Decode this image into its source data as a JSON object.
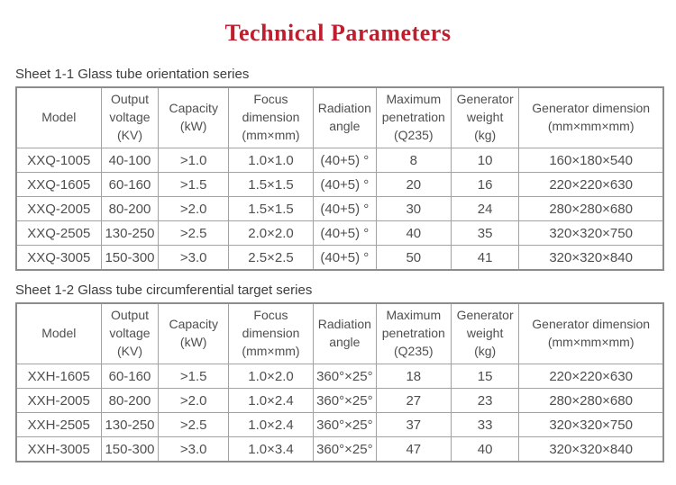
{
  "page": {
    "title": "Technical Parameters",
    "accent_color": "#be1e2d",
    "text_color": "#4f4f4f"
  },
  "tables": [
    {
      "caption": "Sheet 1-1 Glass tube orientation series",
      "headers": [
        "Model",
        "Output\nvoltage\n(KV)",
        "Capacity\n(kW)",
        "Focus\ndimension\n(mm×mm)",
        "Radiation\nangle",
        "Maximum\npenetration\n(Q235)",
        "Generator\nweight\n(kg)",
        "Generator dimension\n(mm×mm×mm)"
      ],
      "rows": [
        [
          "XXQ-1005",
          "40-100",
          ">1.0",
          "1.0×1.0",
          "(40+5) °",
          "8",
          "10",
          "160×180×540"
        ],
        [
          "XXQ-1605",
          "60-160",
          ">1.5",
          "1.5×1.5",
          "(40+5) °",
          "20",
          "16",
          "220×220×630"
        ],
        [
          "XXQ-2005",
          "80-200",
          ">2.0",
          "1.5×1.5",
          "(40+5) °",
          "30",
          "24",
          "280×280×680"
        ],
        [
          "XXQ-2505",
          "130-250",
          ">2.5",
          "2.0×2.0",
          "(40+5) °",
          "40",
          "35",
          "320×320×750"
        ],
        [
          "XXQ-3005",
          "150-300",
          ">3.0",
          "2.5×2.5",
          "(40+5) °",
          "50",
          "41",
          "320×320×840"
        ]
      ]
    },
    {
      "caption": "Sheet 1-2 Glass tube circumferential target series",
      "headers": [
        "Model",
        "Output\nvoltage\n(KV)",
        "Capacity\n(kW)",
        "Focus\ndimension\n(mm×mm)",
        "Radiation\nangle",
        "Maximum\npenetration\n(Q235)",
        "Generator\nweight\n(kg)",
        "Generator dimension\n(mm×mm×mm)"
      ],
      "rows": [
        [
          "XXH-1605",
          "60-160",
          ">1.5",
          "1.0×2.0",
          "360°×25°",
          "18",
          "15",
          "220×220×630"
        ],
        [
          "XXH-2005",
          "80-200",
          ">2.0",
          "1.0×2.4",
          "360°×25°",
          "27",
          "23",
          "280×280×680"
        ],
        [
          "XXH-2505",
          "130-250",
          ">2.5",
          "1.0×2.4",
          "360°×25°",
          "37",
          "33",
          "320×320×750"
        ],
        [
          "XXH-3005",
          "150-300",
          ">3.0",
          "1.0×3.4",
          "360°×25°",
          "47",
          "40",
          "320×320×840"
        ]
      ]
    }
  ]
}
